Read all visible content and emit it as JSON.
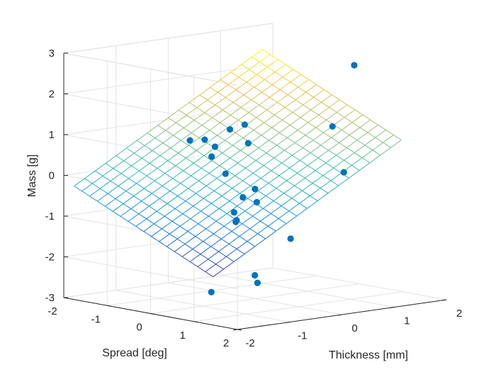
{
  "chart_data": {
    "type": "surface3d+scatter3d",
    "xlabel": "Thickness [mm]",
    "ylabel": "Spread [deg]",
    "zlabel": "Mass [g]",
    "xlim": [
      -2,
      2
    ],
    "ylim": [
      -2,
      2
    ],
    "zlim": [
      -3,
      3
    ],
    "xticks": [
      "-2",
      "-1",
      "0",
      "1",
      "2"
    ],
    "yticks": [
      "-2",
      "-1",
      "0",
      "1",
      "2"
    ],
    "zticks": [
      "-3",
      "-2",
      "-1",
      "0",
      "1",
      "2",
      "3"
    ],
    "grid": true,
    "surface": {
      "model": "z = b0 + bx*x + by*y",
      "b0": 0.05,
      "bx": 0.75,
      "by": -0.5,
      "x_range": [
        -1.8,
        1.8
      ],
      "y_range": [
        -2.0,
        1.2
      ],
      "colormap": "parula"
    },
    "scatter": {
      "color": "#0072BD",
      "points": [
        {
          "x": -0.4,
          "y": 1.3,
          "z": -1.2
        },
        {
          "x": -1.5,
          "y": 1.8,
          "z": -1.8
        },
        {
          "x": -1.2,
          "y": 1.5,
          "z": -2.1
        },
        {
          "x": 0.9,
          "y": 1.2,
          "z": 2.8
        },
        {
          "x": 0.9,
          "y": 0.7,
          "z": 1.2
        },
        {
          "x": 1.2,
          "y": 0.6,
          "z": 0.0
        },
        {
          "x": -0.5,
          "y": -0.9,
          "z": 0.8
        },
        {
          "x": -0.3,
          "y": -0.8,
          "z": 0.8
        },
        {
          "x": 0.1,
          "y": -0.7,
          "z": 1.0
        },
        {
          "x": 0.2,
          "y": -0.4,
          "z": 0.7
        },
        {
          "x": 0.3,
          "y": -0.6,
          "z": 1.1
        },
        {
          "x": -0.6,
          "y": -0.2,
          "z": 0.8
        },
        {
          "x": -0.5,
          "y": -0.4,
          "z": 0.5
        },
        {
          "x": -0.4,
          "y": 0.2,
          "z": -0.4
        },
        {
          "x": -0.3,
          "y": 0.4,
          "z": -0.5
        },
        {
          "x": -0.9,
          "y": 0.6,
          "z": -0.6
        },
        {
          "x": -1.1,
          "y": 0.9,
          "z": -0.7
        },
        {
          "x": -1.2,
          "y": 1.0,
          "z": -0.7
        },
        {
          "x": -0.5,
          "y": 0.6,
          "z": -0.1
        },
        {
          "x": -0.4,
          "y": -0.2,
          "z": 0.1
        },
        {
          "x": -2.0,
          "y": 1.4,
          "z": -2.2
        }
      ]
    }
  }
}
